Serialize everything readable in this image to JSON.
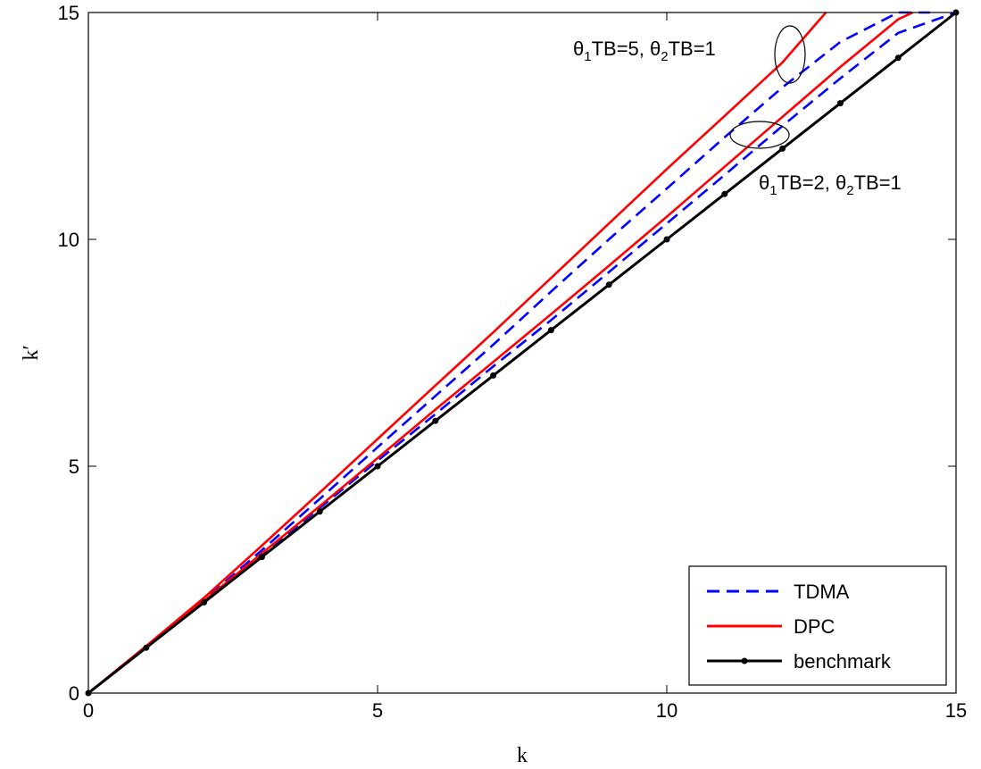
{
  "chart_data": {
    "type": "line",
    "xlabel": "k",
    "ylabel": "k′",
    "xlim": [
      0,
      15
    ],
    "ylim": [
      0,
      15
    ],
    "xticks": [
      "0",
      "5",
      "10",
      "15"
    ],
    "yticks": [
      "0",
      "5",
      "10",
      "15"
    ],
    "grid": false,
    "legend_position": "bottom-right",
    "series": [
      {
        "name": "TDMA",
        "group": "θ1TB=5, θ2TB=1",
        "color": "#0000ff",
        "style": "dashed",
        "x": [
          0,
          1,
          2,
          3,
          4,
          5,
          6,
          7,
          8,
          9,
          10,
          11,
          12,
          13,
          14,
          14.55
        ],
        "y": [
          0,
          1.02,
          2.05,
          3.15,
          4.28,
          5.42,
          6.55,
          7.68,
          8.85,
          10.0,
          11.12,
          12.25,
          13.35,
          14.35,
          15.0,
          15.0
        ]
      },
      {
        "name": "DPC",
        "group": "θ1TB=5, θ2TB=1",
        "color": "#ff0000",
        "style": "solid",
        "x": [
          0,
          1,
          2,
          3,
          4,
          5,
          6,
          7,
          8,
          9,
          10,
          11,
          12,
          12.75
        ],
        "y": [
          0,
          1.04,
          2.1,
          3.25,
          4.42,
          5.6,
          6.78,
          7.95,
          9.15,
          10.35,
          11.55,
          12.72,
          13.9,
          15.0
        ]
      },
      {
        "name": "TDMA",
        "group": "θ1TB=2, θ2TB=1",
        "color": "#0000ff",
        "style": "dashed",
        "x": [
          0,
          1,
          2,
          3,
          4,
          5,
          6,
          7,
          8,
          9,
          10,
          11,
          12,
          13,
          14,
          15
        ],
        "y": [
          0,
          1.01,
          2.02,
          3.05,
          4.08,
          5.12,
          6.15,
          7.2,
          8.22,
          9.28,
          10.35,
          11.42,
          12.5,
          13.55,
          14.55,
          15.0
        ]
      },
      {
        "name": "DPC",
        "group": "θ1TB=2, θ2TB=1",
        "color": "#ff0000",
        "style": "solid",
        "x": [
          0,
          1,
          2,
          3,
          4,
          5,
          6,
          7,
          8,
          9,
          10,
          11,
          12,
          13,
          14,
          14.25
        ],
        "y": [
          0,
          1.01,
          2.03,
          3.08,
          4.12,
          5.18,
          6.25,
          7.3,
          8.35,
          9.42,
          10.5,
          11.6,
          12.7,
          13.8,
          14.85,
          15.0
        ]
      },
      {
        "name": "benchmark",
        "color": "#000000",
        "style": "solid-dot",
        "x": [
          0,
          1,
          2,
          3,
          4,
          5,
          6,
          7,
          8,
          9,
          10,
          11,
          12,
          13,
          14,
          15
        ],
        "y": [
          0,
          1,
          2,
          3,
          4,
          5,
          6,
          7,
          8,
          9,
          10,
          11,
          12,
          13,
          14,
          15
        ]
      }
    ],
    "annotations": [
      {
        "main1": "θ",
        "sub1": "1",
        "main2": "TB=5, θ",
        "sub2": "2",
        "main3": "TB=1"
      },
      {
        "main1": "θ",
        "sub1": "1",
        "main2": "TB=2, θ",
        "sub2": "2",
        "main3": "TB=1"
      }
    ],
    "legend": [
      {
        "label": "TDMA",
        "color": "#0000ff",
        "style": "dashed"
      },
      {
        "label": "DPC",
        "color": "#ff0000",
        "style": "solid"
      },
      {
        "label": "benchmark",
        "color": "#000000",
        "style": "solid-dot"
      }
    ]
  }
}
